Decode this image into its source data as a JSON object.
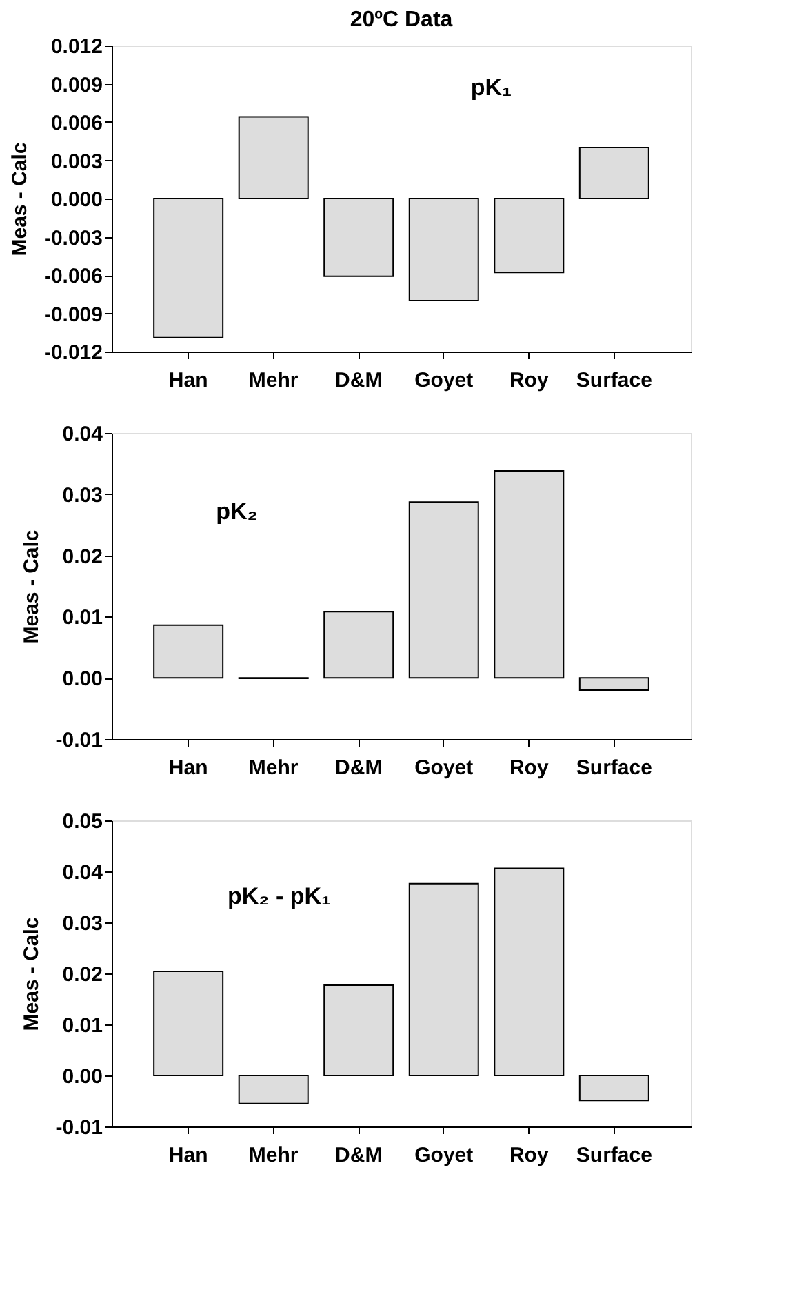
{
  "chart_data": [
    {
      "type": "bar",
      "title": "20ºC Data",
      "ylabel": "Meas - Calc",
      "annotations": [
        "pK₁"
      ],
      "categories": [
        "Han",
        "Mehr",
        "D&M",
        "Goyet",
        "Roy",
        "Surface"
      ],
      "color": "#dddddd",
      "ylim": [
        -0.012,
        0.012
      ],
      "yticks": [
        {
          "value": -0.012,
          "label": "-0.012"
        },
        {
          "value": -0.009,
          "label": "-0.009"
        },
        {
          "value": -0.006,
          "label": "-0.006"
        },
        {
          "value": -0.003,
          "label": "-0.003"
        },
        {
          "value": 0,
          "label": "0.000"
        },
        {
          "value": 0.003,
          "label": "0.003"
        },
        {
          "value": 0.006,
          "label": "0.006"
        },
        {
          "value": 0.009,
          "label": "0.009"
        },
        {
          "value": 0.012,
          "label": "0.012"
        }
      ],
      "grid": false,
      "values": [
        -0.0109,
        0.0064,
        -0.0061,
        -0.008,
        -0.0058,
        0.004
      ]
    },
    {
      "type": "bar",
      "ylabel": "Meas - Calc",
      "annotations": [
        "pK₂"
      ],
      "categories": [
        "Han",
        "Mehr",
        "D&M",
        "Goyet",
        "Roy",
        "Surface"
      ],
      "color": "#dddddd",
      "ylim": [
        -0.01,
        0.04
      ],
      "yticks": [
        {
          "value": -0.01,
          "label": "-0.01"
        },
        {
          "value": 0,
          "label": "0.00"
        },
        {
          "value": 0.01,
          "label": "0.01"
        },
        {
          "value": 0.02,
          "label": "0.02"
        },
        {
          "value": 0.03,
          "label": "0.03"
        },
        {
          "value": 0.04,
          "label": "0.04"
        }
      ],
      "grid": false,
      "values": [
        0.0086,
        -0.0001,
        0.0108,
        0.0287,
        0.0338,
        -0.002
      ]
    },
    {
      "type": "bar",
      "ylabel": "Meas - Calc",
      "annotations": [
        "pK₂ - pK₁"
      ],
      "categories": [
        "Han",
        "Mehr",
        "D&M",
        "Goyet",
        "Roy",
        "Surface"
      ],
      "color": "#dddddd",
      "ylim": [
        -0.01,
        0.05
      ],
      "yticks": [
        {
          "value": -0.01,
          "label": "-0.01"
        },
        {
          "value": 0,
          "label": "0.00"
        },
        {
          "value": 0.01,
          "label": "0.01"
        },
        {
          "value": 0.02,
          "label": "0.02"
        },
        {
          "value": 0.03,
          "label": "0.03"
        },
        {
          "value": 0.04,
          "label": "0.04"
        },
        {
          "value": 0.05,
          "label": "0.05"
        }
      ],
      "grid": false,
      "values": [
        0.0204,
        -0.0055,
        0.0177,
        0.0376,
        0.0406,
        -0.0049
      ]
    }
  ]
}
